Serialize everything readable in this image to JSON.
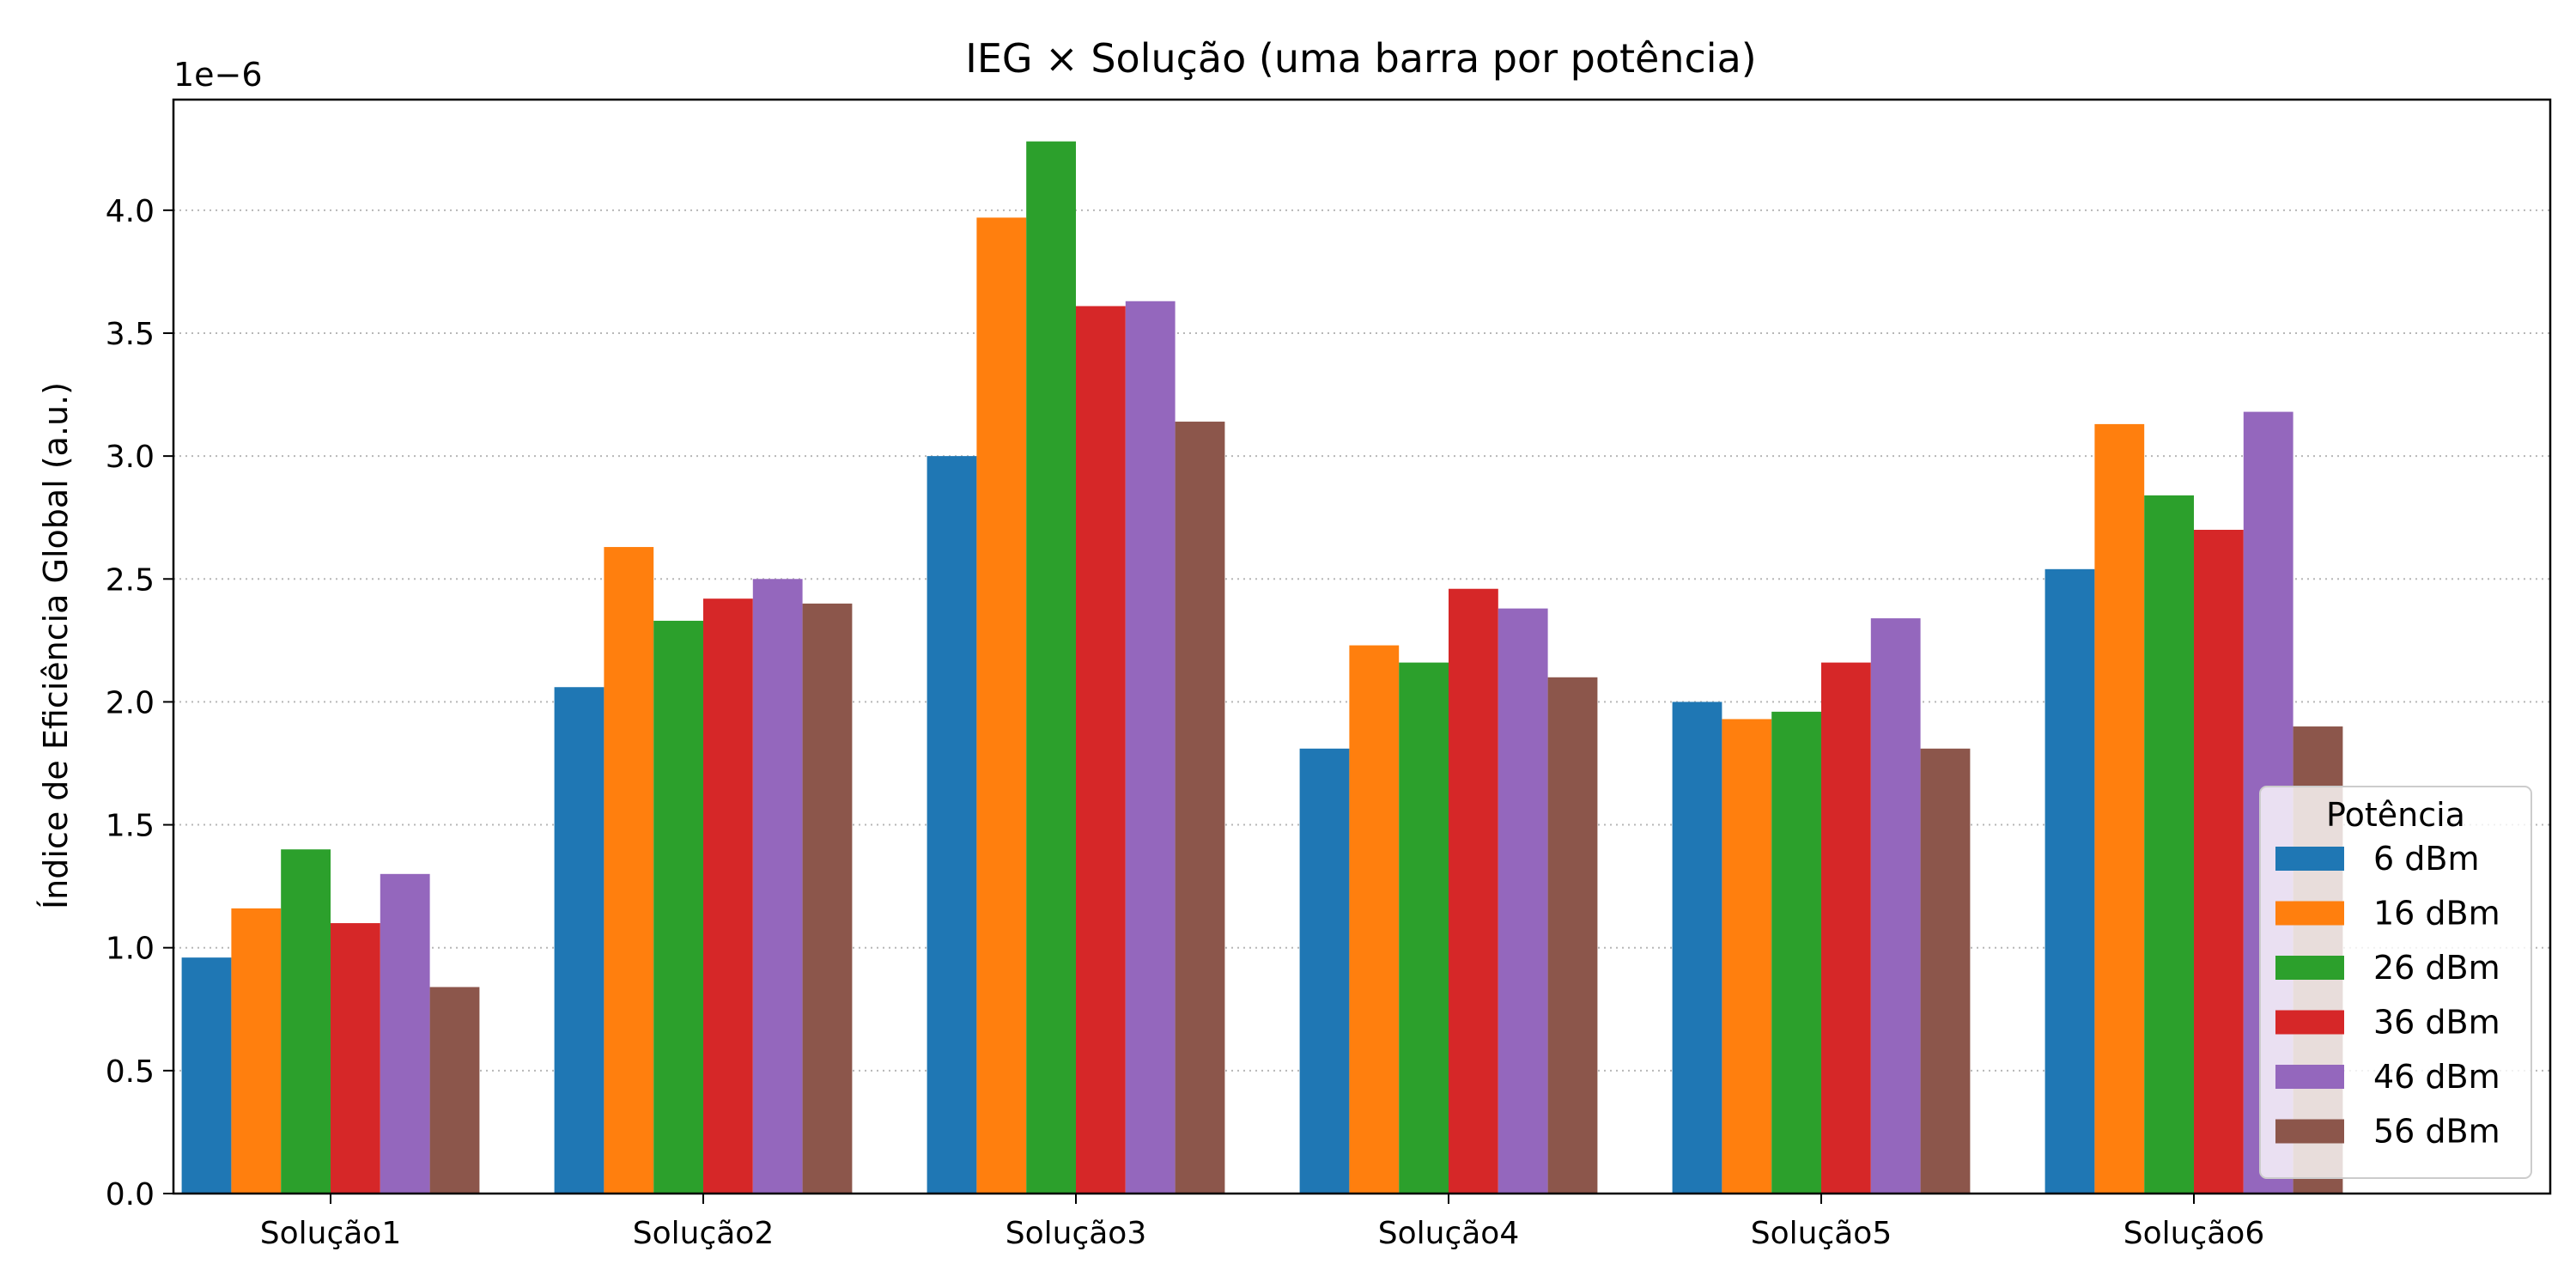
{
  "chart_data": {
    "type": "bar",
    "title": "IEG × Solução (uma barra por potência)",
    "xlabel": "",
    "ylabel": "Índice de Eficiência Global (a.u.)",
    "y_offset_label": "1e−6",
    "ylim": [
      0,
      4.45
    ],
    "yticks": [
      "0.0",
      "0.5",
      "1.0",
      "1.5",
      "2.0",
      "2.5",
      "3.0",
      "3.5",
      "4.0"
    ],
    "grid": "y-dotted",
    "categories": [
      "Solução1",
      "Solução2",
      "Solução3",
      "Solução4",
      "Solução5",
      "Solução6"
    ],
    "legend": {
      "title": "Potência",
      "placement": "lower-right"
    },
    "series": [
      {
        "name": "6 dBm",
        "color": "#1f77b4",
        "values": [
          0.96,
          2.06,
          3.0,
          1.81,
          2.0,
          2.54
        ]
      },
      {
        "name": "16 dBm",
        "color": "#ff7f0e",
        "values": [
          1.16,
          2.63,
          3.97,
          2.23,
          1.93,
          3.13
        ]
      },
      {
        "name": "26 dBm",
        "color": "#2ca02c",
        "values": [
          1.4,
          2.33,
          4.28,
          2.16,
          1.96,
          2.84
        ]
      },
      {
        "name": "36 dBm",
        "color": "#d62728",
        "values": [
          1.1,
          2.42,
          3.61,
          2.46,
          2.16,
          2.7
        ]
      },
      {
        "name": "46 dBm",
        "color": "#9467bd",
        "values": [
          1.3,
          2.5,
          3.63,
          2.38,
          2.34,
          3.18
        ]
      },
      {
        "name": "56 dBm",
        "color": "#8c564b",
        "values": [
          0.84,
          2.4,
          3.14,
          2.1,
          1.81,
          1.9
        ]
      }
    ]
  }
}
